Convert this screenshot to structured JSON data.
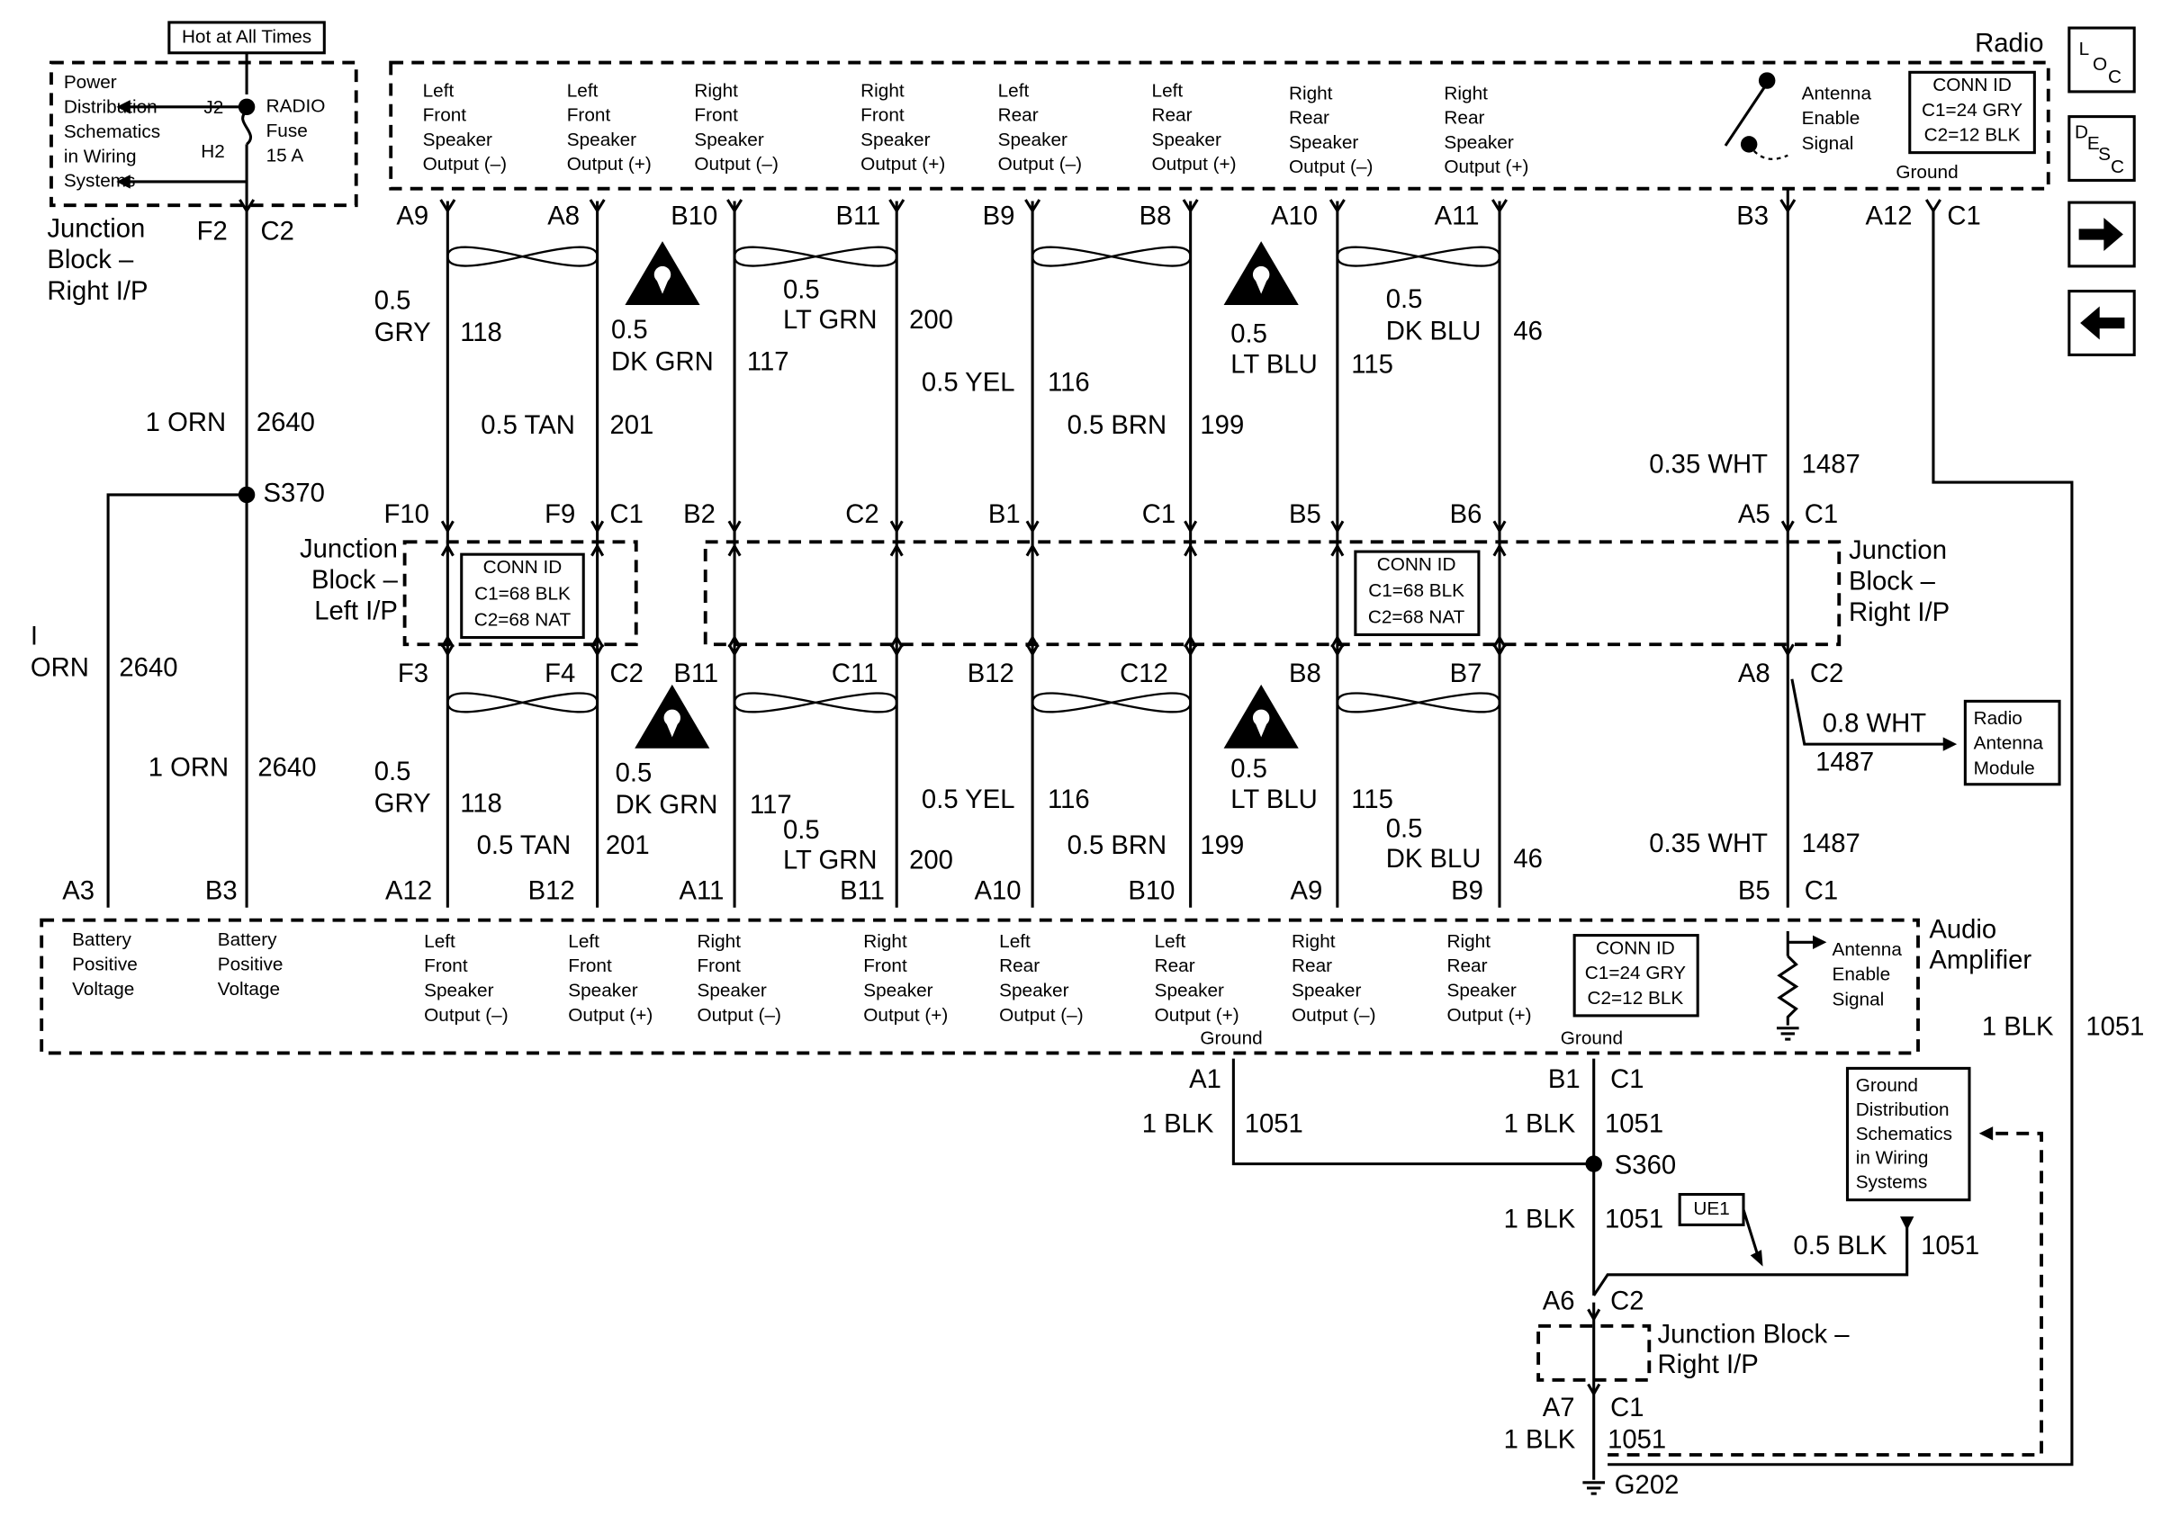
{
  "nav": {
    "loc": [
      "L",
      "O",
      "C"
    ],
    "desc": [
      "D",
      "E",
      "S",
      "C"
    ]
  },
  "power": {
    "hot": "Hot at All Times",
    "distribution": [
      "Power",
      "Distribution",
      "Schematics",
      "in Wiring",
      "Systems"
    ],
    "j2": "J2",
    "h2": "H2",
    "fuse": [
      "RADIO",
      "Fuse",
      "15 A"
    ]
  },
  "radio": {
    "title": "Radio",
    "outputs": [
      [
        "Left",
        "Front",
        "Speaker",
        "Output (–)"
      ],
      [
        "Left",
        "Front",
        "Speaker",
        "Output (+)"
      ],
      [
        "Right",
        "Front",
        "Speaker",
        "Output (–)"
      ],
      [
        "Right",
        "Front",
        "Speaker",
        "Output (+)"
      ],
      [
        "Left",
        "Rear",
        "Speaker",
        "Output (–)"
      ],
      [
        "Left",
        "Rear",
        "Speaker",
        "Output (+)"
      ],
      [
        "Right",
        "Rear",
        "Speaker",
        "Output (–)"
      ],
      [
        "Right",
        "Rear",
        "Speaker",
        "Output (+)"
      ]
    ],
    "antenna": [
      "Antenna",
      "Enable",
      "Signal"
    ],
    "conn_id": [
      "CONN ID",
      "C1=24 GRY",
      "C2=12 BLK"
    ],
    "ground": "Ground"
  },
  "amplifier": {
    "title": [
      "Audio",
      "Amplifier"
    ],
    "battery": [
      [
        "Battery",
        "Positive",
        "Voltage"
      ],
      [
        "Battery",
        "Positive",
        "Voltage"
      ]
    ],
    "outputs": [
      [
        "Left",
        "Front",
        "Speaker",
        "Output (–)"
      ],
      [
        "Left",
        "Front",
        "Speaker",
        "Output (+)"
      ],
      [
        "Right",
        "Front",
        "Speaker",
        "Output (–)"
      ],
      [
        "Right",
        "Front",
        "Speaker",
        "Output (+)"
      ],
      [
        "Left",
        "Rear",
        "Speaker",
        "Output (–)"
      ],
      [
        "Left",
        "Rear",
        "Speaker",
        "Output (+)"
      ],
      [
        "Right",
        "Rear",
        "Speaker",
        "Output (–)"
      ],
      [
        "Right",
        "Rear",
        "Speaker",
        "Output (+)"
      ]
    ],
    "antenna": [
      "Antenna",
      "Enable",
      "Signal"
    ],
    "conn_id": [
      "CONN ID",
      "C1=24 GRY",
      "C2=12 BLK"
    ],
    "grounds": [
      "Ground",
      "Ground"
    ]
  },
  "junction_blocks": {
    "right_top": [
      "Junction",
      "Block –",
      "Right I/P"
    ],
    "left": [
      "Junction",
      "Block –",
      "Left I/P"
    ],
    "right_mid": [
      "Junction",
      "Block –",
      "Right I/P"
    ],
    "right_bottom": [
      "Junction Block –",
      "Right I/P"
    ],
    "conn_ids": [
      [
        "CONN ID",
        "C1=68 BLK",
        "C2=68 NAT"
      ],
      [
        "CONN ID",
        "C1=68 BLK",
        "C2=68 NAT"
      ]
    ]
  },
  "antenna_module": [
    "Radio",
    "Antenna",
    "Module"
  ],
  "ground_distribution": [
    "Ground",
    "Distribution",
    "Schematics",
    "in Wiring",
    "Systems"
  ],
  "ue1": "UE1",
  "labels": {
    "left": [
      "F2",
      "C2",
      "1 ORN",
      "2640",
      "S370",
      "I",
      "ORN",
      "2640",
      "1 ORN",
      "2640",
      "A3",
      "B3"
    ],
    "pins_top": [
      "A9",
      "A8",
      "B10",
      "B11",
      "B9",
      "B8",
      "A10",
      "A11",
      "B3",
      "A12",
      "C1"
    ],
    "wires_top": [
      "0.5",
      "GRY",
      "118",
      "0.5 TAN",
      "201",
      "0.5",
      "DK GRN",
      "117",
      "0.5",
      "LT GRN",
      "200",
      "0.5 YEL",
      "116",
      "0.5 BRN",
      "199",
      "0.5",
      "LT BLU",
      "115",
      "0.5",
      "DK BLU",
      "46",
      "0.35 WHT",
      "1487"
    ],
    "pins_mid": [
      "F10",
      "F9",
      "C1",
      "B2",
      "C2",
      "B1",
      "C1",
      "B5",
      "B6",
      "A5",
      "C1"
    ],
    "pins_bottom": [
      "F3",
      "F4",
      "C2",
      "B11",
      "C11",
      "B12",
      "C12",
      "B8",
      "B7",
      "A8",
      "C2"
    ],
    "wires_bottom": [
      "0.5",
      "GRY",
      "118",
      "0.5 TAN",
      "201",
      "0.5",
      "DK GRN",
      "117",
      "0.5",
      "LT GRN",
      "200",
      "0.5 YEL",
      "116",
      "0.5 BRN",
      "199",
      "0.5",
      "LT BLU",
      "115",
      "0.5",
      "DK BLU",
      "46",
      "0.35 WHT",
      "1487",
      "0.8 WHT",
      "1487"
    ],
    "pins_amp": [
      "A12",
      "B12",
      "A11",
      "B11",
      "A10",
      "B10",
      "A9",
      "B9",
      "B5",
      "C1"
    ],
    "ground": [
      "1 BLK",
      "1051",
      "A1",
      "B1",
      "C1",
      "1 BLK",
      "1051",
      "1 BLK",
      "1051",
      "S360",
      "1 BLK",
      "1051",
      "0.5 BLK",
      "1051",
      "A6",
      "C2",
      "A7",
      "C1",
      "1 BLK",
      "1051",
      "G202"
    ]
  }
}
